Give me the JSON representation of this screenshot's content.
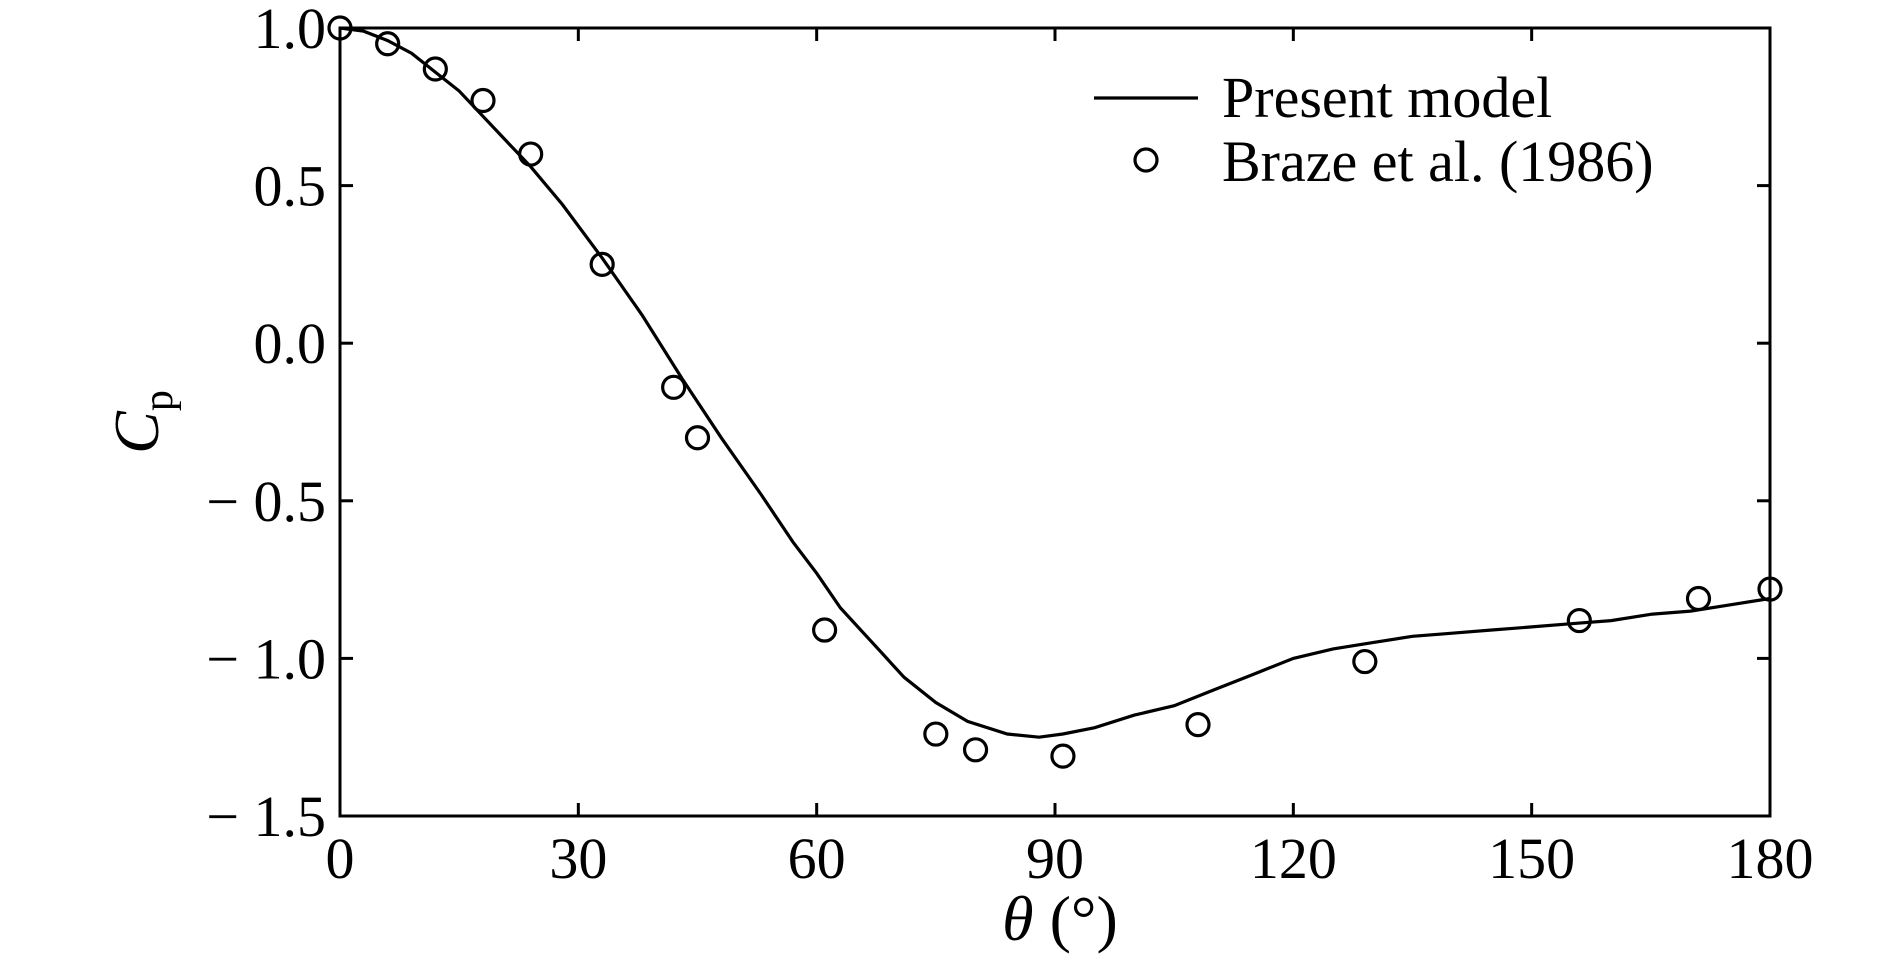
{
  "chart_data": {
    "type": "line",
    "xlabel": {
      "symbol": "θ",
      "unit": " (°)"
    },
    "ylabel": {
      "symbol": "C",
      "subscript": "p"
    },
    "xlim": [
      0,
      180
    ],
    "ylim": [
      -1.5,
      1.0
    ],
    "xticks": [
      0,
      30,
      60,
      90,
      120,
      150,
      180
    ],
    "xtick_labels": [
      "0",
      "30",
      "60",
      "90",
      "120",
      "150",
      "180"
    ],
    "yticks": [
      1.0,
      0.5,
      0.0,
      -0.5,
      -1.0,
      -1.5
    ],
    "ytick_labels": [
      "1.0",
      "0.5",
      "0.0",
      "− 0.5",
      "− 1.0",
      "− 1.5"
    ],
    "grid": false,
    "legend_position": "top-right",
    "series": [
      {
        "name": "Present model",
        "style": "line",
        "color": "#000000",
        "x": [
          0,
          3,
          6,
          9,
          12,
          15,
          18,
          21,
          24,
          28,
          33,
          38,
          43,
          48,
          53,
          57,
          60,
          63,
          67,
          71,
          75,
          79,
          84,
          88,
          91,
          95,
          100,
          105,
          110,
          115,
          120,
          125,
          130,
          135,
          140,
          145,
          150,
          155,
          160,
          165,
          170,
          175,
          180
        ],
        "y": [
          1.0,
          0.99,
          0.96,
          0.92,
          0.86,
          0.8,
          0.72,
          0.64,
          0.56,
          0.44,
          0.27,
          0.09,
          -0.11,
          -0.3,
          -0.48,
          -0.63,
          -0.73,
          -0.84,
          -0.95,
          -1.06,
          -1.14,
          -1.2,
          -1.24,
          -1.25,
          -1.24,
          -1.22,
          -1.18,
          -1.15,
          -1.1,
          -1.05,
          -1.0,
          -0.97,
          -0.95,
          -0.93,
          -0.92,
          -0.91,
          -0.9,
          -0.89,
          -0.88,
          -0.86,
          -0.85,
          -0.83,
          -0.81
        ]
      },
      {
        "name": "Braze et al. (1986)",
        "style": "open-circle",
        "color": "#000000",
        "x": [
          0,
          6,
          12,
          18,
          24,
          33,
          42,
          45,
          61,
          75,
          80,
          91,
          108,
          129,
          156,
          171,
          180
        ],
        "y": [
          1.0,
          0.95,
          0.87,
          0.77,
          0.6,
          0.25,
          -0.14,
          -0.3,
          -0.91,
          -1.24,
          -1.29,
          -1.31,
          -1.21,
          -1.01,
          -0.88,
          -0.81,
          -0.78
        ]
      }
    ]
  }
}
